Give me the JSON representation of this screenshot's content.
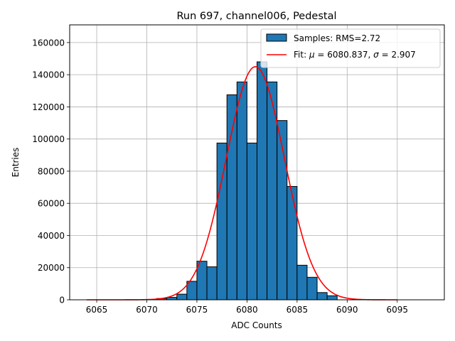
{
  "chart_data": {
    "type": "bar",
    "title": "Run 697, channel006, Pedestal",
    "xlabel": "ADC Counts",
    "ylabel": "Entries",
    "xlim": [
      6062.3,
      6099.7
    ],
    "ylim": [
      0,
      171000
    ],
    "grid": true,
    "legend_position": "top-right",
    "x_ticks": [
      6065,
      6070,
      6075,
      6080,
      6085,
      6090,
      6095
    ],
    "y_ticks": [
      0,
      20000,
      40000,
      60000,
      80000,
      100000,
      120000,
      140000,
      160000
    ],
    "histogram": {
      "bin_edges": [
        6070,
        6071,
        6072,
        6073,
        6074,
        6075,
        6076,
        6077,
        6078,
        6079,
        6080,
        6081,
        6082,
        6083,
        6084,
        6085,
        6086,
        6087,
        6088,
        6089
      ],
      "counts": [
        200,
        800,
        1500,
        3500,
        11500,
        24000,
        20500,
        97500,
        127500,
        135500,
        97500,
        148000,
        135500,
        111500,
        70500,
        21500,
        14000,
        4500,
        2500
      ],
      "fill_color": "#1f77b4",
      "edge_color": "#000000",
      "legend_label": "Samples: RMS=2.72"
    },
    "fit": {
      "mu": 6080.837,
      "sigma": 2.907,
      "amplitude": 145000,
      "x_range": [
        6064,
        6095
      ],
      "color": "#ff0000",
      "legend_prefix": "Fit: ",
      "mu_symbol": "μ",
      "mu_text": " = 6080.837, ",
      "sigma_symbol": "σ",
      "sigma_text": " = 2.907"
    }
  }
}
